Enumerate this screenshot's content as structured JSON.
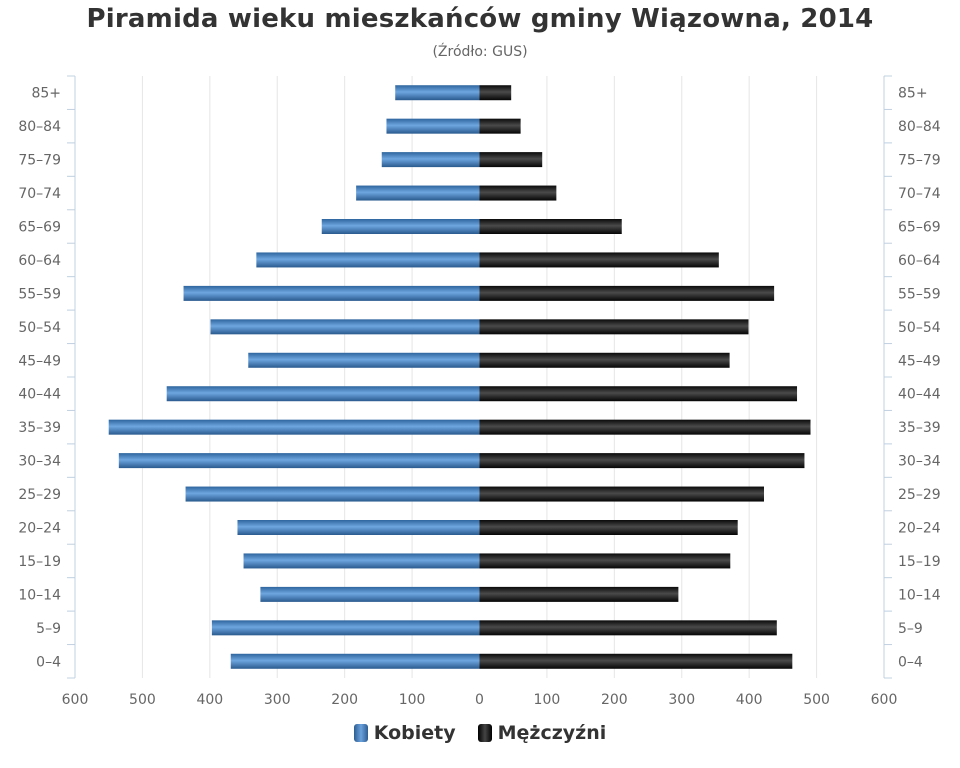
{
  "chart_data": {
    "type": "bar",
    "title": "Piramida wieku mieszkańców gminy Wiązowna, 2014",
    "subtitle": "(Źródło: GUS)",
    "categories": [
      "85+",
      "80–84",
      "75–79",
      "70–74",
      "65–69",
      "60–64",
      "55–59",
      "50–54",
      "45–49",
      "40–44",
      "35–39",
      "30–34",
      "25–29",
      "20–24",
      "15–19",
      "10–14",
      "5–9",
      "0–4"
    ],
    "series": [
      {
        "name": "Kobiety",
        "values": [
          125,
          138,
          145,
          183,
          234,
          331,
          439,
          399,
          343,
          464,
          550,
          535,
          436,
          359,
          350,
          325,
          397,
          369
        ]
      },
      {
        "name": "Mężczyźni",
        "values": [
          47,
          61,
          93,
          114,
          211,
          355,
          437,
          399,
          371,
          471,
          491,
          482,
          422,
          383,
          372,
          295,
          441,
          464
        ]
      }
    ],
    "x_ticks": [
      "600",
      "500",
      "400",
      "300",
      "200",
      "100",
      "0",
      "100",
      "200",
      "300",
      "400",
      "500",
      "600"
    ],
    "xlim": [
      -600,
      600
    ],
    "grid": true,
    "legend_position": "bottom-center"
  },
  "colors": {
    "female": "#4a83c3",
    "male": "#1a1a1a",
    "grid": "#e6e6e6",
    "text": "#333333"
  }
}
